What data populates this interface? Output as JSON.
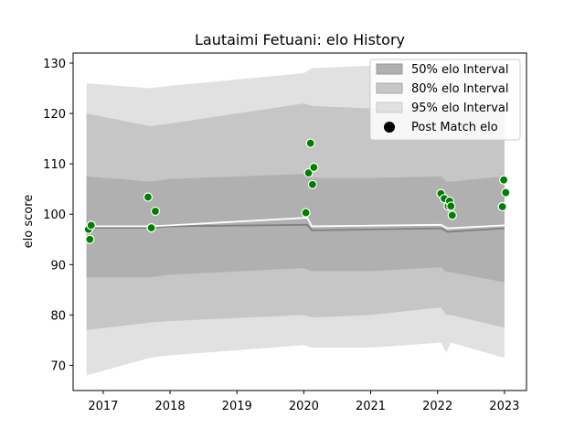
{
  "chart_data": {
    "type": "line",
    "title": "Lautaimi Fetuani: elo History",
    "xlabel": "",
    "ylabel": "elo score",
    "xlim": [
      2016.55,
      2023.33
    ],
    "ylim": [
      65,
      132
    ],
    "x_ticks": [
      2017,
      2018,
      2019,
      2020,
      2021,
      2022,
      2023
    ],
    "y_ticks": [
      70,
      80,
      90,
      100,
      110,
      120,
      130
    ],
    "grid": false,
    "legend_position": "top-right",
    "legend": [
      {
        "label": "50% elo Interval",
        "color": "#b0b0b0"
      },
      {
        "label": "80% elo Interval",
        "color": "#c6c6c6"
      },
      {
        "label": "95% elo Interval",
        "color": "#e1e1e1"
      },
      {
        "label": "Post Match elo",
        "color": "#000000"
      }
    ],
    "bands": {
      "x": [
        2016.75,
        2017.7,
        2018.0,
        2020.0,
        2020.12,
        2021.0,
        2022.05,
        2022.13,
        2022.2,
        2023.0
      ],
      "p95_low": [
        68,
        71.5,
        72,
        74,
        73.5,
        73.5,
        74.5,
        72.5,
        74.5,
        71.5
      ],
      "p95_high": [
        126,
        125,
        125.5,
        128,
        129,
        129.5,
        129.5,
        129,
        130,
        130
      ],
      "p80_low": [
        77,
        78.5,
        78.8,
        80,
        79.5,
        80,
        81.5,
        80,
        80,
        77.5
      ],
      "p80_high": [
        120,
        117.5,
        118,
        122,
        121.5,
        121,
        121.5,
        120.5,
        121,
        122
      ],
      "p50_low": [
        87.5,
        87.5,
        88,
        89.3,
        88.7,
        88.7,
        89.5,
        88.5,
        88.5,
        86.5
      ],
      "p50_high": [
        107.5,
        106.5,
        107,
        108,
        107.2,
        107.2,
        107.5,
        106.5,
        106.5,
        107.5
      ]
    },
    "series": [
      {
        "kind": "mean",
        "color": "#808080",
        "x": [
          2016.75,
          2017.7,
          2018.0,
          2020.05,
          2020.12,
          2022.05,
          2022.15,
          2023.0
        ],
        "y": [
          97.3,
          97.3,
          97.6,
          97.9,
          96.8,
          97.2,
          96.5,
          97.2
        ]
      },
      {
        "kind": "smoothed",
        "color": "#ffffff",
        "x": [
          2016.75,
          2017.7,
          2018.0,
          2020.05,
          2020.12,
          2022.05,
          2022.15,
          2023.0
        ],
        "y": [
          97.6,
          97.6,
          97.8,
          99.3,
          97.6,
          97.9,
          97.2,
          97.8
        ]
      },
      {
        "kind": "points",
        "name": "Post Match elo",
        "color": "#008000",
        "x": [
          2016.78,
          2016.8,
          2016.82,
          2017.67,
          2017.72,
          2017.78,
          2020.03,
          2020.07,
          2020.1,
          2020.13,
          2020.15,
          2022.05,
          2022.1,
          2022.16,
          2022.18,
          2022.2,
          2022.22,
          2022.97,
          2022.99,
          2023.02
        ],
        "y": [
          97,
          95,
          97.8,
          103.4,
          97.3,
          100.6,
          100.3,
          108.2,
          114.1,
          105.9,
          109.3,
          104.1,
          103.1,
          101.6,
          102.6,
          101.6,
          99.8,
          101.5,
          106.8,
          104.3
        ]
      }
    ]
  }
}
